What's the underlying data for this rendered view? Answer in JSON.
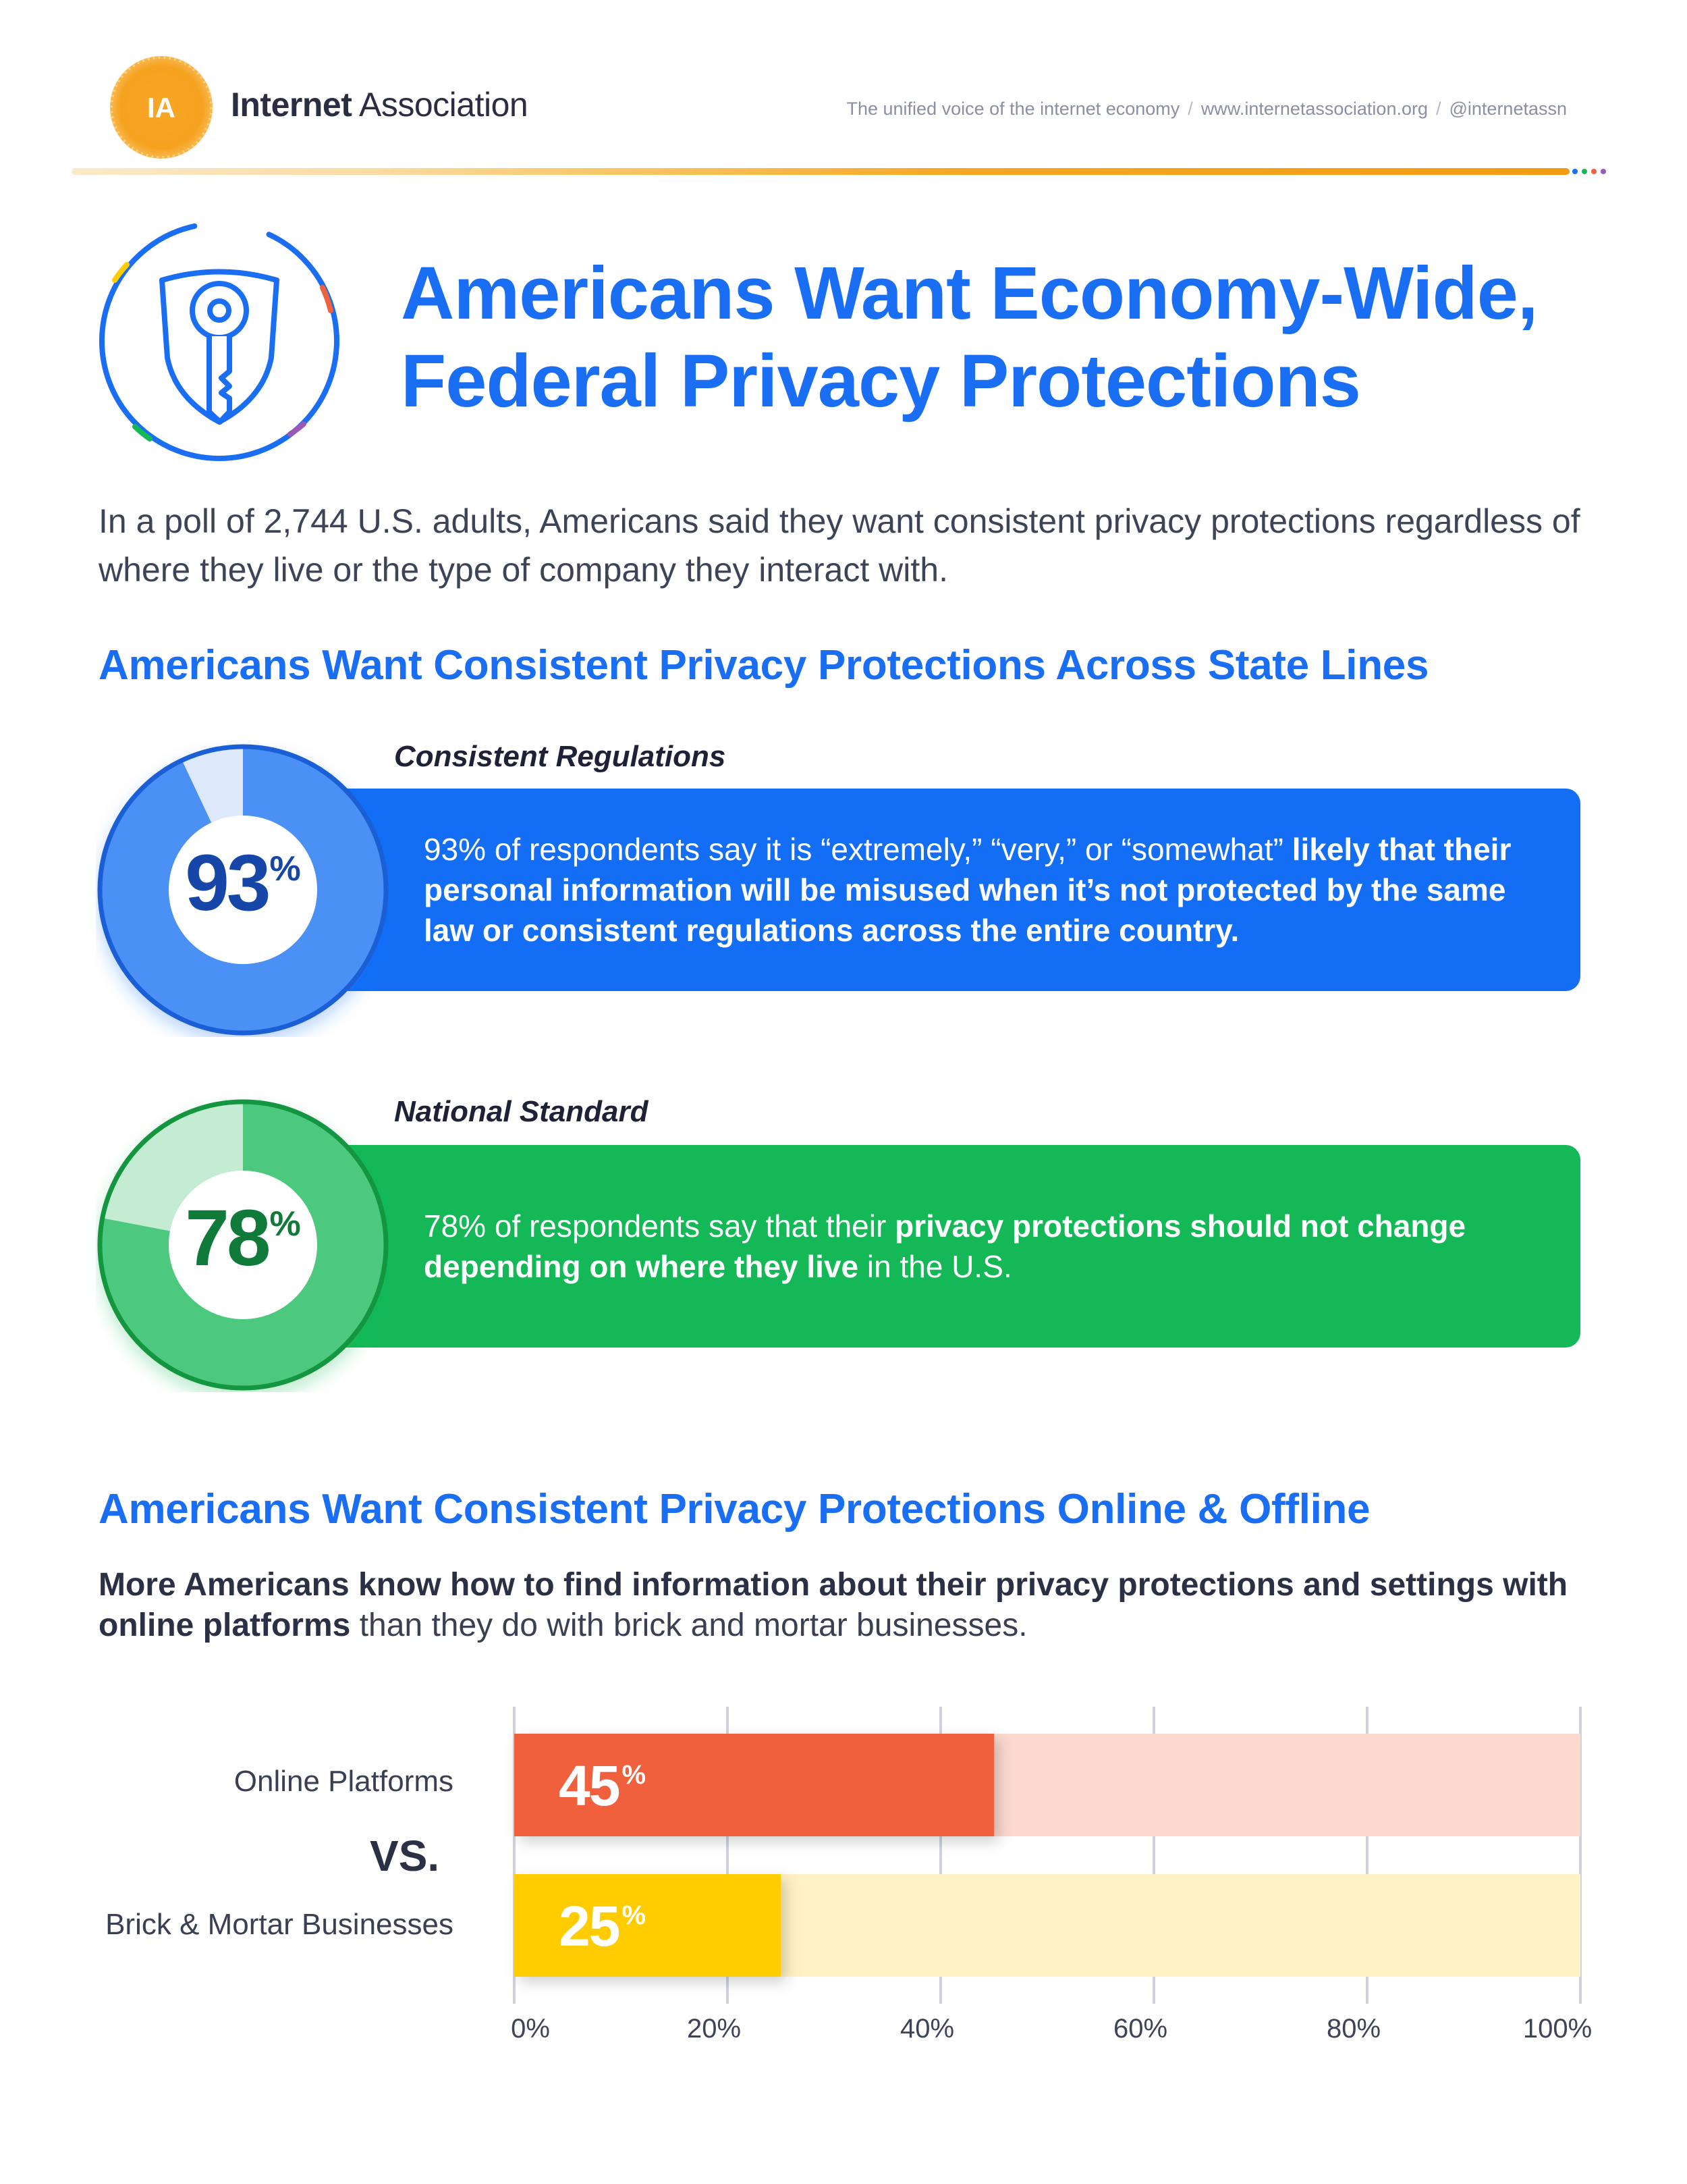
{
  "header": {
    "logo_text": "IA",
    "brand_bold": "Internet",
    "brand_rest": " Association",
    "tagline_parts": [
      "The unified voice of the internet economy",
      "www.internetassociation.org",
      "@internetassn"
    ],
    "tagline_separator": "/"
  },
  "title": {
    "line1": "Americans Want Economy-Wide,",
    "line2": "Federal Privacy Protections"
  },
  "intro": "In a poll of 2,744 U.S. adults, Americans said they want consistent privacy protections regardless of where they live or the type of company they interact with.",
  "section1": {
    "heading": "Americans Want Consistent Privacy Protections Across State Lines",
    "stats": [
      {
        "label": "Consistent Regulations",
        "value": 93,
        "value_text": "93",
        "unit": "%",
        "text_pre": "93% of respondents say it is “extremely,” “very,” or “somewhat” ",
        "text_bold": "likely that their personal information will be misused when it’s not protected by the same law or consistent regulations across the entire country.",
        "text_post": "",
        "color": "#136df5"
      },
      {
        "label": "National Standard",
        "value": 78,
        "value_text": "78",
        "unit": "%",
        "text_pre": "78% of respondents say that their ",
        "text_bold": "privacy protections should not change depending on where they live",
        "text_post": " in the U.S.",
        "color": "#14b857"
      }
    ]
  },
  "section2": {
    "heading": "Americans Want Consistent Privacy Protections Online & Offline",
    "lede_bold": "More Americans know how to find information about their privacy protections and settings with online platforms",
    "lede_rest": " than they do with brick and mortar businesses.",
    "vs": "VS."
  },
  "chart_data": {
    "type": "bar",
    "orientation": "horizontal",
    "categories": [
      "Online Platforms",
      "Brick & Mortar Businesses"
    ],
    "values": [
      45,
      25
    ],
    "value_labels": [
      "45",
      "25"
    ],
    "unit": "%",
    "colors": [
      "#f0613e",
      "#ffcc00"
    ],
    "track_colors": [
      "#fcd8cf",
      "#fff2c4"
    ],
    "xlim": [
      0,
      100
    ],
    "xticks": [
      0,
      20,
      40,
      60,
      80,
      100
    ],
    "xtick_labels": [
      "0%",
      "20%",
      "40%",
      "60%",
      "80%",
      "100%"
    ],
    "grid": true,
    "title": "",
    "xlabel": "",
    "ylabel": ""
  }
}
